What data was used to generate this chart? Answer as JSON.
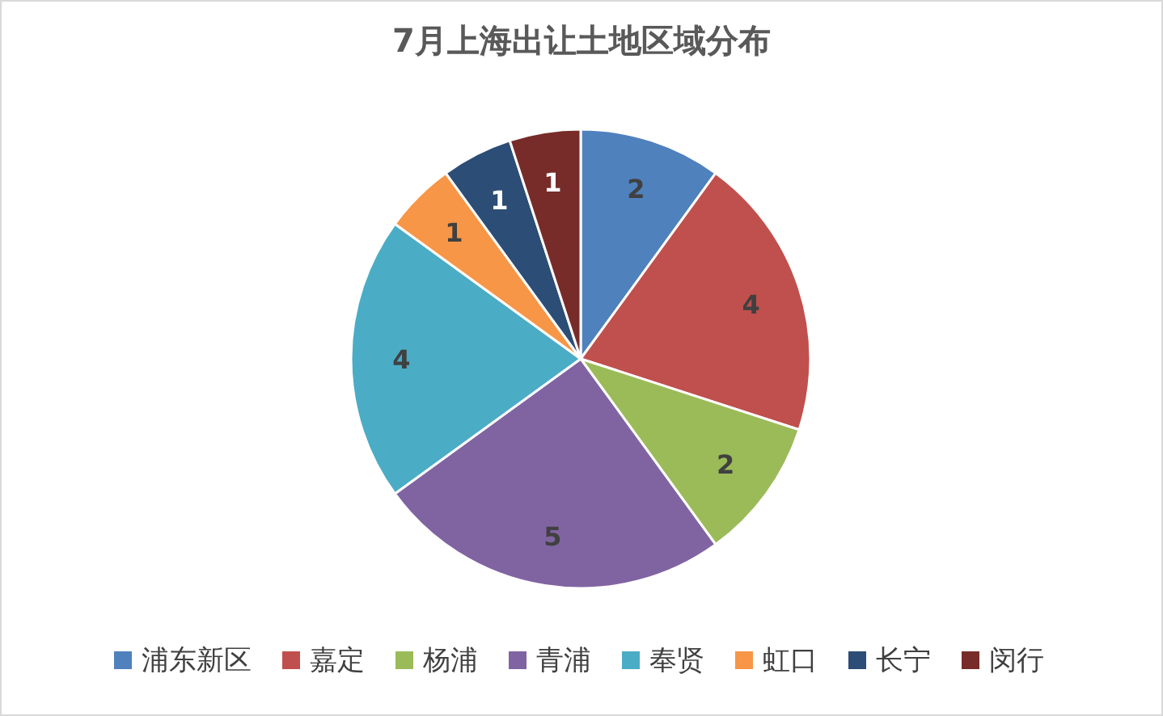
{
  "chart_data": {
    "type": "pie",
    "title": "7月上海出让土地区域分布",
    "categories": [
      "浦东新区",
      "嘉定",
      "杨浦",
      "青浦",
      "奉贤",
      "虹口",
      "长宁",
      "闵行"
    ],
    "values": [
      2,
      4,
      2,
      5,
      4,
      1,
      1,
      1
    ],
    "colors": [
      "#4f81bd",
      "#c0504d",
      "#9bbb59",
      "#8064a2",
      "#4bacc6",
      "#f79646",
      "#2c4d75",
      "#772c2a"
    ],
    "data_labels": true,
    "legend": "bottom"
  }
}
